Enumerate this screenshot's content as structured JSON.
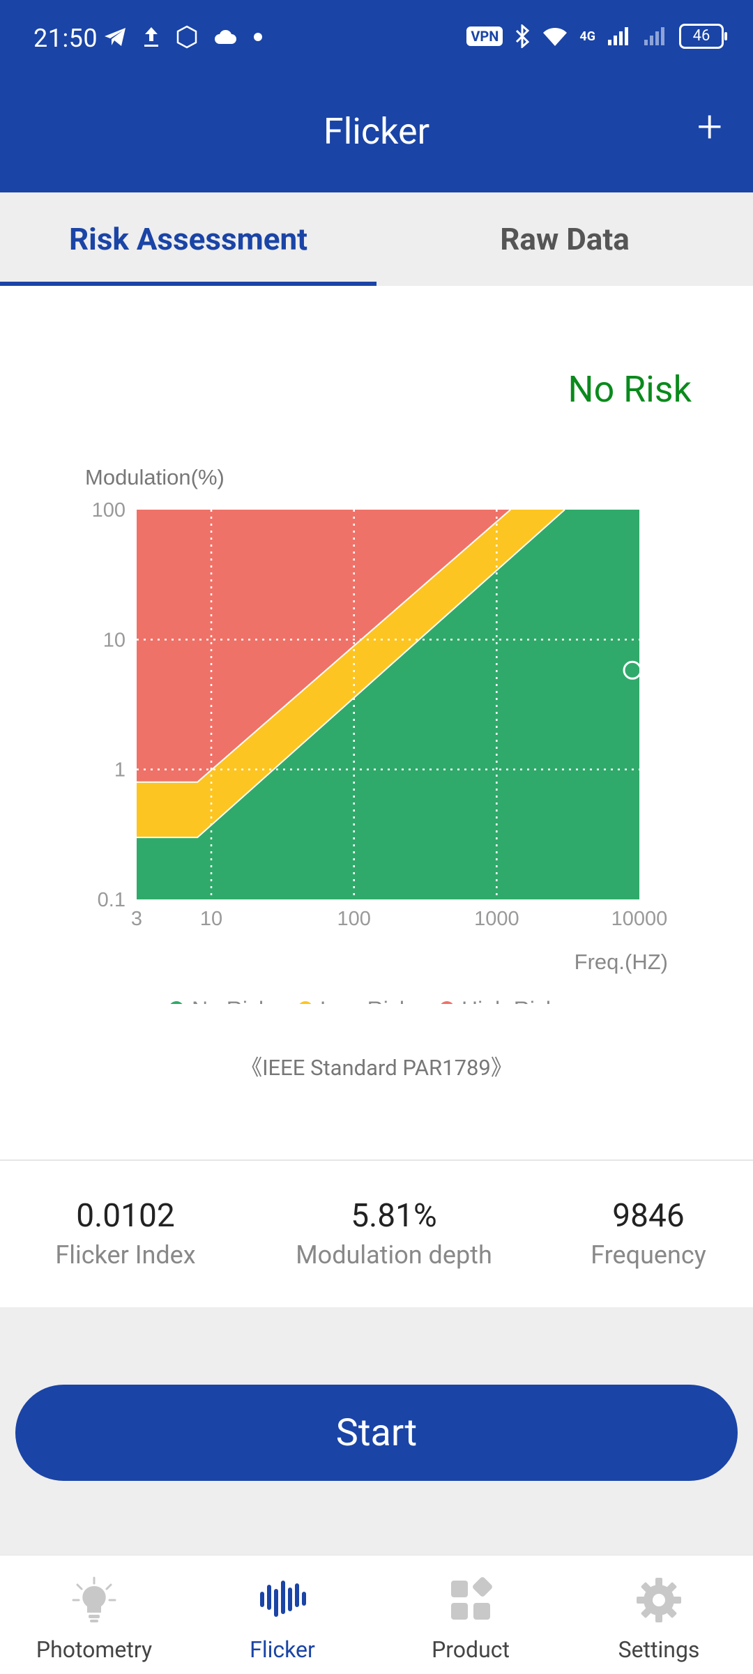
{
  "status_bar": {
    "time": "21:50",
    "vpn": "VPN",
    "network": "4G",
    "battery": "46"
  },
  "header": {
    "title": "Flicker",
    "add_icon": "plus-icon"
  },
  "tabs": [
    {
      "label": "Risk Assessment",
      "active": true
    },
    {
      "label": "Raw Data",
      "active": false
    }
  ],
  "risk_result": {
    "label": "No Risk",
    "color": "#0a8a1c"
  },
  "chart_data": {
    "type": "area",
    "ylabel": "Modulation(%)",
    "xlabel": "Freq.(HZ)",
    "x_scale": "log",
    "y_scale": "log",
    "x_ticks": [
      "3",
      "10",
      "100",
      "1000",
      "10000"
    ],
    "y_ticks": [
      "100",
      "10",
      "1",
      "0.1"
    ],
    "xlim": [
      3,
      10000
    ],
    "ylim": [
      0.1,
      100
    ],
    "regions": [
      {
        "name": "No Risk",
        "color": "#2faa6a",
        "boundary": [
          [
            3,
            0.3
          ],
          [
            8,
            0.3
          ],
          [
            3000,
            100
          ]
        ]
      },
      {
        "name": "Low Risk",
        "color": "#fdc521",
        "boundary": [
          [
            3,
            0.8
          ],
          [
            8,
            0.8
          ],
          [
            1250,
            100
          ]
        ]
      },
      {
        "name": "High Risk",
        "color": "#ef7268"
      }
    ],
    "point": {
      "frequency": 9846,
      "modulation": 5.81
    },
    "legend": [
      {
        "label": "No Risk",
        "color": "#2faa6a"
      },
      {
        "label": "Low Risk",
        "color": "#fdc521"
      },
      {
        "label": "High Risk",
        "color": "#ef7268"
      }
    ],
    "grid": true,
    "legend_position": "bottom"
  },
  "standard_label": "《IEEE Standard PAR1789》",
  "stats": [
    {
      "value": "0.0102",
      "label": "Flicker Index"
    },
    {
      "value": "5.81%",
      "label": "Modulation depth"
    },
    {
      "value": "9846",
      "label": "Frequency"
    }
  ],
  "start_button": {
    "label": "Start"
  },
  "bottom_nav": [
    {
      "label": "Photometry",
      "icon": "lightbulb-icon",
      "active": false
    },
    {
      "label": "Flicker",
      "icon": "waveform-icon",
      "active": true
    },
    {
      "label": "Product",
      "icon": "grid-shapes-icon",
      "active": false
    },
    {
      "label": "Settings",
      "icon": "gear-icon",
      "active": false
    }
  ]
}
